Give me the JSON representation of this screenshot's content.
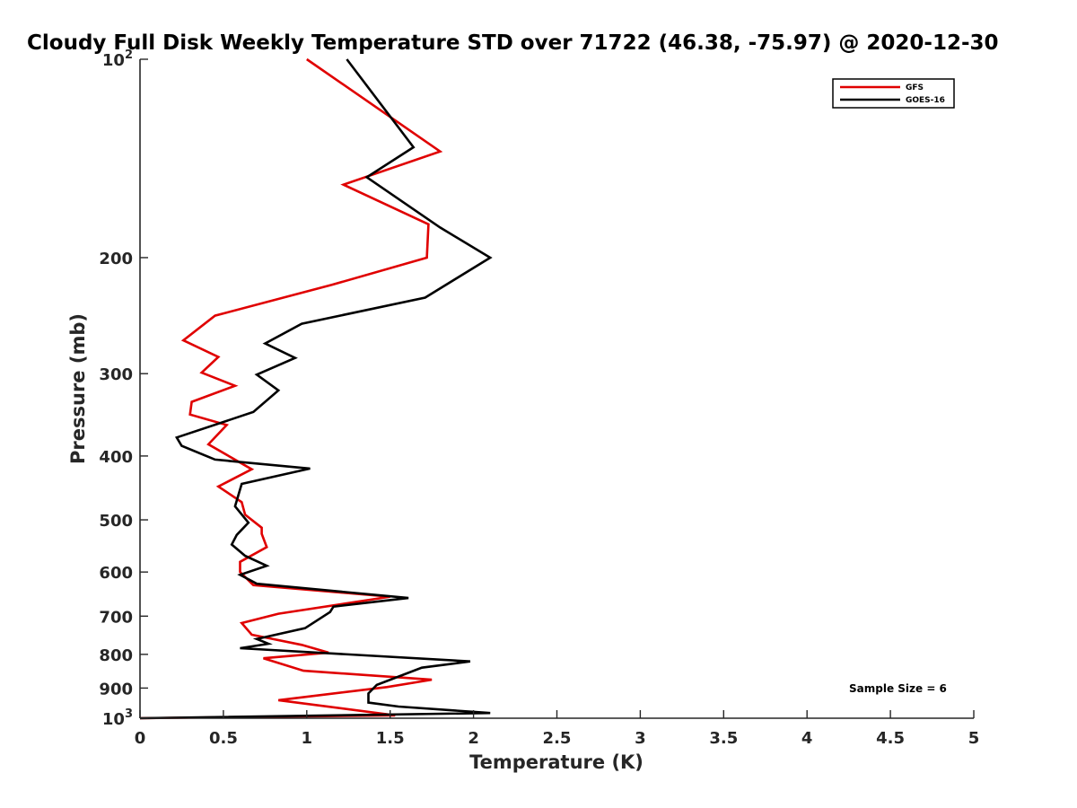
{
  "chart_data": {
    "type": "line",
    "title": "Cloudy Full Disk Weekly Temperature STD over 71722 (46.38, -75.97) @ 2020-12-30",
    "xlabel": "Temperature (K)",
    "ylabel": "Pressure (mb)",
    "xlim": [
      0,
      5
    ],
    "ylim": [
      100,
      1000
    ],
    "y_scale": "log",
    "y_reversed": true,
    "x_ticks": [
      "0",
      "0.5",
      "1",
      "1.5",
      "2",
      "2.5",
      "3",
      "3.5",
      "4",
      "4.5",
      "5"
    ],
    "y_ticks": [
      {
        "value": 100,
        "label": "10",
        "sup": "2"
      },
      {
        "value": 200,
        "label": "200"
      },
      {
        "value": 300,
        "label": "300"
      },
      {
        "value": 400,
        "label": "400"
      },
      {
        "value": 500,
        "label": "500"
      },
      {
        "value": 600,
        "label": "600"
      },
      {
        "value": 700,
        "label": "700"
      },
      {
        "value": 800,
        "label": "800"
      },
      {
        "value": 900,
        "label": "900"
      },
      {
        "value": 1000,
        "label": "10",
        "sup": "3"
      }
    ],
    "legend": {
      "position": "top-right"
    },
    "annotation": "Sample Size = 6",
    "series": [
      {
        "name": "GFS",
        "color": "#e00000",
        "x": [
          1.0,
          1.8,
          1.22,
          1.73,
          1.72,
          1.15,
          0.45,
          0.26,
          0.47,
          0.37,
          0.57,
          0.31,
          0.3,
          0.52,
          0.41,
          0.67,
          0.47,
          0.61,
          0.63,
          0.73,
          0.73,
          0.76,
          0.6,
          0.6,
          0.68,
          1.5,
          0.83,
          0.61,
          0.67,
          0.97,
          1.13,
          0.74,
          0.98,
          1.75,
          1.48,
          0.83,
          1.53,
          0.0
        ],
        "y": [
          100,
          138,
          155,
          178,
          200,
          220,
          245,
          267,
          283,
          299,
          313,
          331,
          346,
          359,
          384,
          419,
          445,
          470,
          491,
          514,
          525,
          550,
          579,
          600,
          628,
          654,
          694,
          717,
          747,
          774,
          795,
          811,
          847,
          874,
          897,
          939,
          990,
          1000
        ]
      },
      {
        "name": "GOES-16",
        "color": "#000000",
        "x": [
          1.24,
          1.64,
          1.36,
          1.8,
          2.1,
          1.71,
          0.97,
          0.75,
          0.93,
          0.7,
          0.83,
          0.68,
          0.22,
          0.25,
          0.45,
          1.02,
          0.61,
          0.57,
          0.65,
          0.58,
          0.55,
          0.63,
          0.76,
          0.6,
          0.7,
          1.61,
          1.16,
          1.14,
          0.99,
          0.7,
          0.77,
          0.6,
          1.98,
          1.69,
          1.42,
          1.37,
          1.37,
          1.55,
          2.1,
          0.0
        ],
        "y": [
          100,
          136,
          151,
          180,
          200,
          230,
          252,
          270,
          284,
          301,
          318,
          343,
          375,
          386,
          405,
          418,
          441,
          477,
          505,
          527,
          545,
          567,
          587,
          606,
          625,
          657,
          677,
          690,
          730,
          758,
          771,
          783,
          820,
          838,
          890,
          917,
          947,
          960,
          982,
          1000
        ]
      }
    ]
  }
}
